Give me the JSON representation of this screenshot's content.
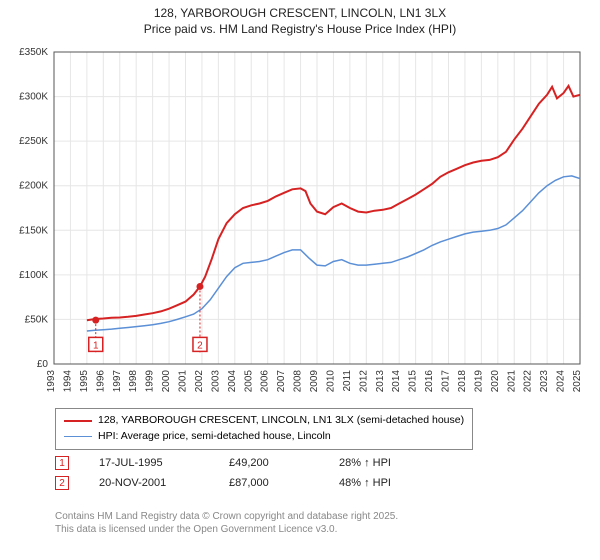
{
  "title_line1": "128, YARBOROUGH CRESCENT, LINCOLN, LN1 3LX",
  "title_line2": "Price paid vs. HM Land Registry's House Price Index (HPI)",
  "chart": {
    "type": "line",
    "background_color": "#ffffff",
    "grid_color": "#e6e6e6",
    "axis_color": "#555555",
    "tick_font_size": 10,
    "x": {
      "min": 1993,
      "max": 2025,
      "ticks": [
        1993,
        1994,
        1995,
        1996,
        1997,
        1998,
        1999,
        2000,
        2001,
        2002,
        2003,
        2004,
        2005,
        2006,
        2007,
        2008,
        2009,
        2010,
        2011,
        2012,
        2013,
        2014,
        2015,
        2016,
        2017,
        2018,
        2019,
        2020,
        2021,
        2022,
        2023,
        2024,
        2025
      ]
    },
    "y": {
      "min": 0,
      "max": 350000,
      "ticks": [
        0,
        50000,
        100000,
        150000,
        200000,
        250000,
        300000,
        350000
      ],
      "tick_labels": [
        "£0",
        "£50K",
        "£100K",
        "£150K",
        "£200K",
        "£250K",
        "£300K",
        "£350K"
      ]
    },
    "series": [
      {
        "name": "price_paid",
        "color": "#d62222",
        "line_width": 2,
        "data": [
          [
            1995.0,
            49000
          ],
          [
            1995.5,
            50500
          ],
          [
            1996.0,
            51000
          ],
          [
            1996.5,
            51800
          ],
          [
            1997.0,
            52200
          ],
          [
            1997.5,
            53000
          ],
          [
            1998.0,
            54000
          ],
          [
            1998.5,
            55500
          ],
          [
            1999.0,
            57000
          ],
          [
            1999.5,
            59000
          ],
          [
            2000.0,
            62000
          ],
          [
            2000.5,
            66000
          ],
          [
            2001.0,
            70000
          ],
          [
            2001.5,
            78000
          ],
          [
            2001.88,
            87000
          ],
          [
            2002.2,
            98000
          ],
          [
            2002.6,
            118000
          ],
          [
            2003.0,
            140000
          ],
          [
            2003.5,
            158000
          ],
          [
            2004.0,
            168000
          ],
          [
            2004.5,
            175000
          ],
          [
            2005.0,
            178000
          ],
          [
            2005.5,
            180000
          ],
          [
            2006.0,
            183000
          ],
          [
            2006.5,
            188000
          ],
          [
            2007.0,
            192000
          ],
          [
            2007.5,
            196000
          ],
          [
            2008.0,
            197000
          ],
          [
            2008.3,
            194000
          ],
          [
            2008.6,
            180000
          ],
          [
            2009.0,
            171000
          ],
          [
            2009.5,
            168000
          ],
          [
            2010.0,
            176000
          ],
          [
            2010.5,
            180000
          ],
          [
            2011.0,
            175000
          ],
          [
            2011.5,
            171000
          ],
          [
            2012.0,
            170000
          ],
          [
            2012.5,
            172000
          ],
          [
            2013.0,
            173000
          ],
          [
            2013.5,
            175000
          ],
          [
            2014.0,
            180000
          ],
          [
            2014.5,
            185000
          ],
          [
            2015.0,
            190000
          ],
          [
            2015.5,
            196000
          ],
          [
            2016.0,
            202000
          ],
          [
            2016.5,
            210000
          ],
          [
            2017.0,
            215000
          ],
          [
            2017.5,
            219000
          ],
          [
            2018.0,
            223000
          ],
          [
            2018.5,
            226000
          ],
          [
            2019.0,
            228000
          ],
          [
            2019.5,
            229000
          ],
          [
            2020.0,
            232000
          ],
          [
            2020.5,
            238000
          ],
          [
            2021.0,
            252000
          ],
          [
            2021.5,
            264000
          ],
          [
            2022.0,
            278000
          ],
          [
            2022.5,
            292000
          ],
          [
            2023.0,
            302000
          ],
          [
            2023.3,
            311000
          ],
          [
            2023.6,
            298000
          ],
          [
            2024.0,
            304000
          ],
          [
            2024.3,
            312000
          ],
          [
            2024.6,
            300000
          ],
          [
            2025.0,
            302000
          ]
        ]
      },
      {
        "name": "hpi",
        "color": "#5b8fd6",
        "line_width": 1.5,
        "data": [
          [
            1995.0,
            37000
          ],
          [
            1995.5,
            37800
          ],
          [
            1996.0,
            38500
          ],
          [
            1996.5,
            39200
          ],
          [
            1997.0,
            40000
          ],
          [
            1997.5,
            41000
          ],
          [
            1998.0,
            42000
          ],
          [
            1998.5,
            43000
          ],
          [
            1999.0,
            44000
          ],
          [
            1999.5,
            45500
          ],
          [
            2000.0,
            47500
          ],
          [
            2000.5,
            50000
          ],
          [
            2001.0,
            53000
          ],
          [
            2001.5,
            56000
          ],
          [
            2002.0,
            62000
          ],
          [
            2002.5,
            72000
          ],
          [
            2003.0,
            85000
          ],
          [
            2003.5,
            98000
          ],
          [
            2004.0,
            108000
          ],
          [
            2004.5,
            113000
          ],
          [
            2005.0,
            114000
          ],
          [
            2005.5,
            115000
          ],
          [
            2006.0,
            117000
          ],
          [
            2006.5,
            121000
          ],
          [
            2007.0,
            125000
          ],
          [
            2007.5,
            128000
          ],
          [
            2008.0,
            128000
          ],
          [
            2008.5,
            119000
          ],
          [
            2009.0,
            111000
          ],
          [
            2009.5,
            110000
          ],
          [
            2010.0,
            115000
          ],
          [
            2010.5,
            117000
          ],
          [
            2011.0,
            113000
          ],
          [
            2011.5,
            111000
          ],
          [
            2012.0,
            111000
          ],
          [
            2012.5,
            112000
          ],
          [
            2013.0,
            113000
          ],
          [
            2013.5,
            114000
          ],
          [
            2014.0,
            117000
          ],
          [
            2014.5,
            120000
          ],
          [
            2015.0,
            124000
          ],
          [
            2015.5,
            128000
          ],
          [
            2016.0,
            133000
          ],
          [
            2016.5,
            137000
          ],
          [
            2017.0,
            140000
          ],
          [
            2017.5,
            143000
          ],
          [
            2018.0,
            146000
          ],
          [
            2018.5,
            148000
          ],
          [
            2019.0,
            149000
          ],
          [
            2019.5,
            150000
          ],
          [
            2020.0,
            152000
          ],
          [
            2020.5,
            156000
          ],
          [
            2021.0,
            164000
          ],
          [
            2021.5,
            172000
          ],
          [
            2022.0,
            182000
          ],
          [
            2022.5,
            192000
          ],
          [
            2023.0,
            200000
          ],
          [
            2023.5,
            206000
          ],
          [
            2024.0,
            210000
          ],
          [
            2024.5,
            211000
          ],
          [
            2025.0,
            208000
          ]
        ]
      }
    ],
    "markers": [
      {
        "label": "1",
        "x": 1995.54,
        "y": 49200,
        "color": "#d62222",
        "box_y_top": 22000
      },
      {
        "label": "2",
        "x": 2001.88,
        "y": 87000,
        "color": "#d62222",
        "box_y_top": 22000
      }
    ]
  },
  "legend": {
    "items": [
      {
        "color": "#d62222",
        "width": 2,
        "label": "128, YARBOROUGH CRESCENT, LINCOLN, LN1 3LX (semi-detached house)"
      },
      {
        "color": "#5b8fd6",
        "width": 1.5,
        "label": "HPI: Average price, semi-detached house, Lincoln"
      }
    ]
  },
  "annotations": [
    {
      "num": "1",
      "color": "#d62222",
      "date": "17-JUL-1995",
      "price": "£49,200",
      "hpi": "28% ↑ HPI"
    },
    {
      "num": "2",
      "color": "#d62222",
      "date": "20-NOV-2001",
      "price": "£87,000",
      "hpi": "48% ↑ HPI"
    }
  ],
  "footer_line1": "Contains HM Land Registry data © Crown copyright and database right 2025.",
  "footer_line2": "This data is licensed under the Open Government Licence v3.0."
}
